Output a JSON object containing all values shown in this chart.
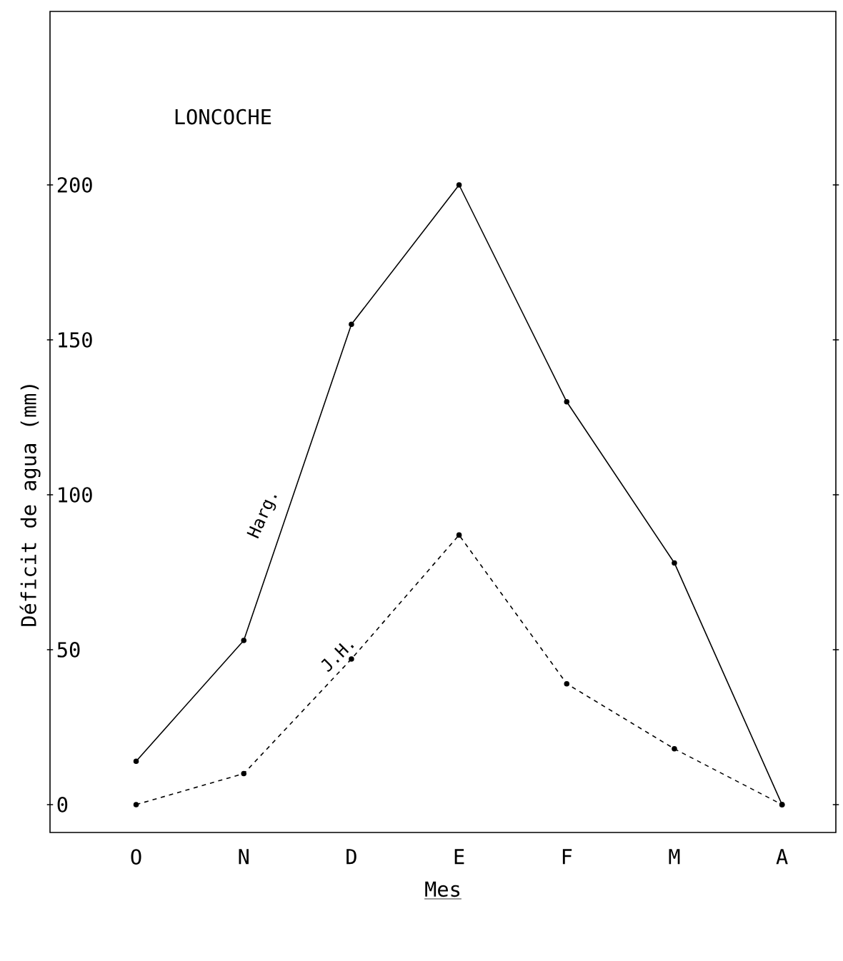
{
  "chart_data": {
    "type": "line",
    "title": "LONCOCHE",
    "xlabel": "Mes",
    "ylabel": "Déficit de agua (mm)",
    "categories": [
      "O",
      "N",
      "D",
      "E",
      "F",
      "M",
      "A"
    ],
    "series": [
      {
        "name": "Harg.",
        "color": "#000000",
        "line_style": "solid",
        "values": [
          14,
          53,
          155,
          200,
          130,
          78,
          0
        ]
      },
      {
        "name": "J.H.",
        "color": "#000000",
        "line_style": "dashed",
        "values": [
          0,
          10,
          47,
          87,
          39,
          18,
          0
        ]
      }
    ],
    "ylim": [
      -9,
      256
    ],
    "yticks": [
      0,
      50,
      100,
      150,
      200
    ],
    "marker": "circle"
  }
}
